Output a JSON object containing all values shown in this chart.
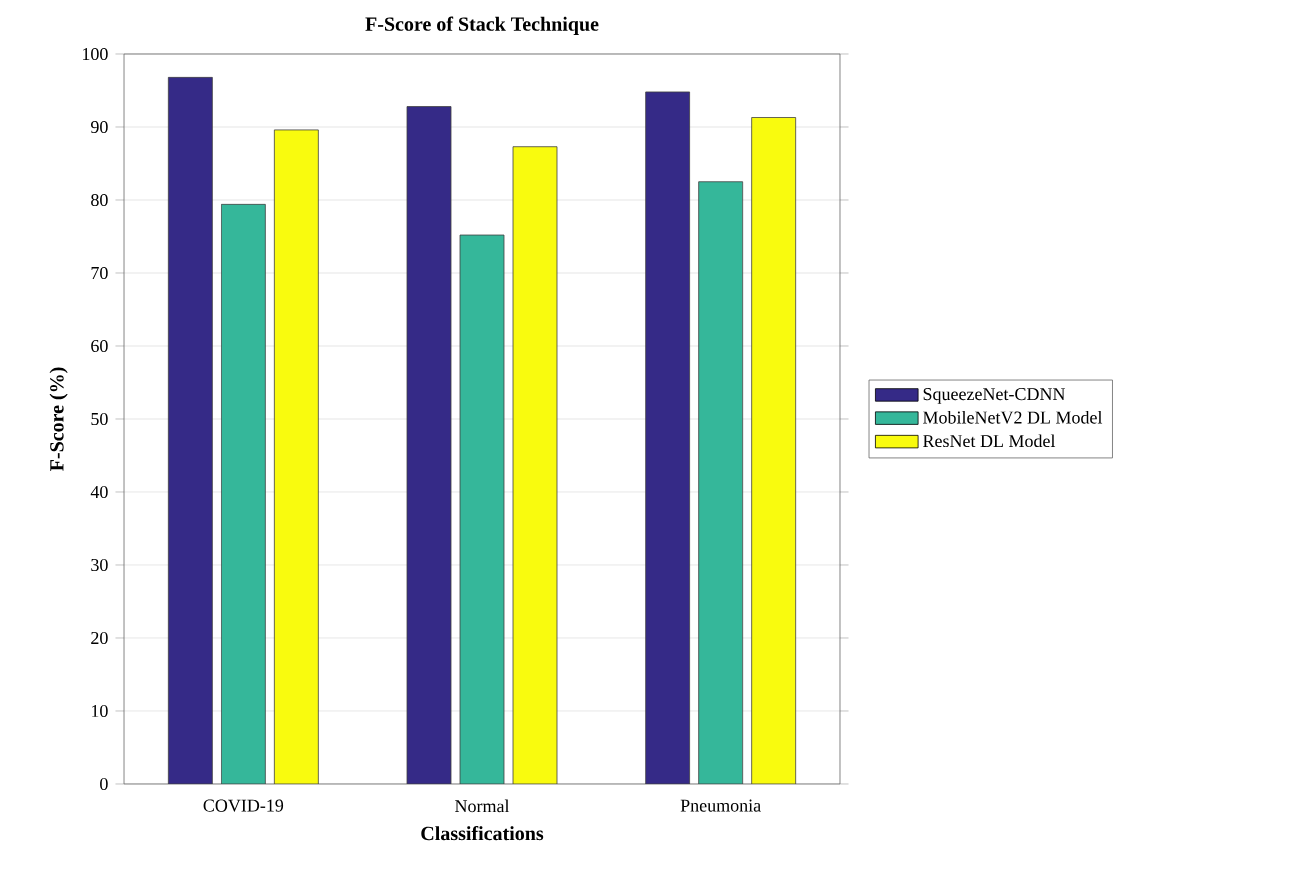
{
  "chart_data": {
    "type": "bar",
    "title": "F-Score of Stack Technique",
    "xlabel": "Classifications",
    "ylabel": "F-Score (%)",
    "categories": [
      "COVID-19",
      "Normal",
      "Pneumonia"
    ],
    "series": [
      {
        "name": "SqueezeNet-CDNN",
        "color": "#352a87",
        "values": [
          96.8,
          92.8,
          94.8
        ]
      },
      {
        "name": "MobileNetV2 DL Model",
        "color": "#35b79a",
        "values": [
          79.4,
          75.2,
          82.5
        ]
      },
      {
        "name": "ResNet DL Model",
        "color": "#f9fb0e",
        "values": [
          89.6,
          87.3,
          91.3
        ]
      }
    ],
    "ylim": [
      0,
      100
    ],
    "yticks": [
      0,
      10,
      20,
      30,
      40,
      50,
      60,
      70,
      80,
      90,
      100
    ],
    "grid": "y",
    "legend": "right"
  }
}
